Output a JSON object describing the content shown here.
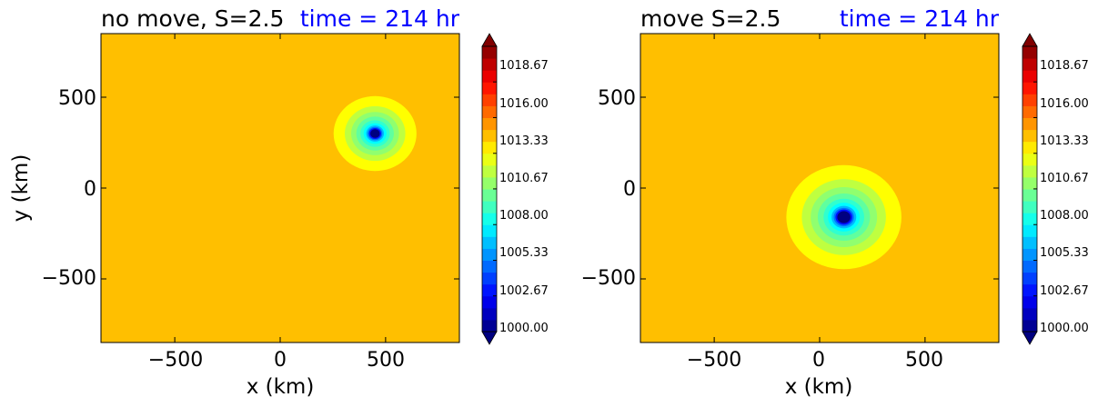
{
  "chart_data": [
    {
      "type": "heatmap",
      "title_left": "no move, S=2.5",
      "title_right": "time = 214 hr",
      "xlabel": "x (km)",
      "ylabel": "y (km)",
      "xlim": [
        -850,
        850
      ],
      "ylim": [
        -850,
        850
      ],
      "xticks": [
        -500,
        0,
        500
      ],
      "yticks": [
        -500,
        0,
        500
      ],
      "xtick_labels": [
        "−500",
        "0",
        "500"
      ],
      "ytick_labels": [
        "−500",
        "0",
        "500"
      ],
      "field": "pressure",
      "center": {
        "x": 450,
        "y": 300
      },
      "ambient_value": 1014.67,
      "min_value": 1000.0,
      "colorbar": {
        "ticks": [
          1000.0,
          1002.67,
          1005.33,
          1008.0,
          1010.67,
          1013.33,
          1016.0,
          1018.67
        ],
        "tick_labels": [
          "1000.00",
          "1002.67",
          "1005.33",
          "1008.00",
          "1010.67",
          "1013.33",
          "1016.00",
          "1018.67"
        ],
        "range": [
          1000.0,
          1021.33
        ],
        "levels": 24
      }
    },
    {
      "type": "heatmap",
      "title_left": "move S=2.5",
      "title_right": "time = 214 hr",
      "xlabel": "x (km)",
      "ylabel": "",
      "xlim": [
        -850,
        850
      ],
      "ylim": [
        -850,
        850
      ],
      "xticks": [
        -500,
        0,
        500
      ],
      "yticks": [
        -500,
        0,
        500
      ],
      "xtick_labels": [
        "−500",
        "0",
        "500"
      ],
      "ytick_labels": [
        "−500",
        "0",
        "500"
      ],
      "field": "pressure",
      "center": {
        "x": 115,
        "y": -160
      },
      "ambient_value": 1014.67,
      "min_value": 1000.0,
      "colorbar": {
        "ticks": [
          1000.0,
          1002.67,
          1005.33,
          1008.0,
          1010.67,
          1013.33,
          1016.0,
          1018.67
        ],
        "tick_labels": [
          "1000.00",
          "1002.67",
          "1005.33",
          "1008.00",
          "1010.67",
          "1013.33",
          "1016.00",
          "1018.67"
        ],
        "range": [
          1000.0,
          1021.33
        ],
        "levels": 24
      }
    }
  ]
}
